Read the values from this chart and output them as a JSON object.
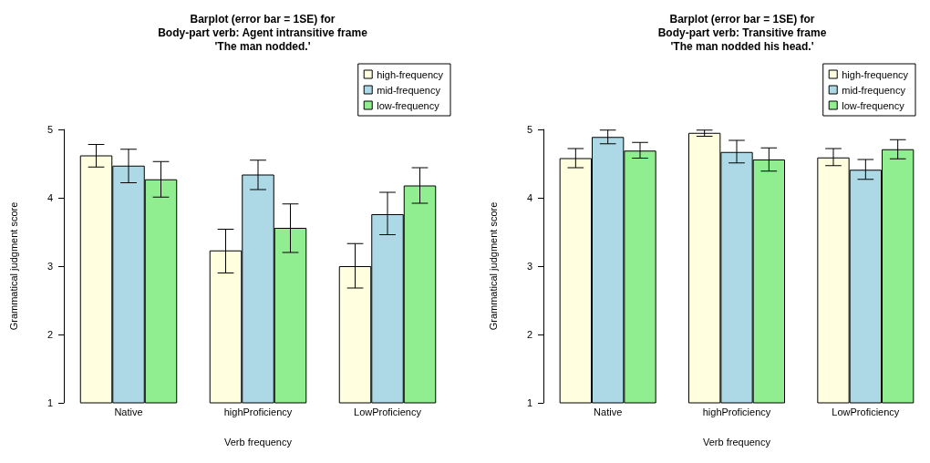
{
  "chart_data": [
    {
      "type": "bar",
      "title": "Barplot (error bar = 1SE) for\nBody-part verb: Agent intransitive frame\n'The man nodded.'",
      "xlabel": "Verb frequency",
      "ylabel": "Grammatical judgment score",
      "categories": [
        "Native",
        "highProficiency",
        "LowProficiency"
      ],
      "ylim": [
        1,
        5
      ],
      "yticks": [
        1,
        2,
        3,
        4,
        5
      ],
      "grid": false,
      "legend": "top right",
      "series": [
        {
          "name": "high-frequency",
          "color": "#ffffe0",
          "values": [
            4.62,
            3.23,
            3.0
          ],
          "errors": [
            [
              4.45,
              4.78
            ],
            [
              2.9,
              3.54
            ],
            [
              2.68,
              3.33
            ]
          ]
        },
        {
          "name": "mid-frequency",
          "color": "#add8e6",
          "values": [
            4.47,
            4.34,
            3.76
          ],
          "errors": [
            [
              4.22,
              4.71
            ],
            [
              4.12,
              4.55
            ],
            [
              3.46,
              4.08
            ]
          ]
        },
        {
          "name": "low-frequency",
          "color": "#90ee90",
          "values": [
            4.27,
            3.56,
            4.18
          ],
          "errors": [
            [
              4.01,
              4.53
            ],
            [
              3.2,
              3.91
            ],
            [
              3.92,
              4.44
            ]
          ]
        }
      ]
    },
    {
      "type": "bar",
      "title": "Barplot (error bar = 1SE) for\nBody-part verb: Transitive frame\n'The man nodded his head.'",
      "xlabel": "Verb frequency",
      "ylabel": "Grammatical judgment score",
      "categories": [
        "Native",
        "highProficiency",
        "LowProficiency"
      ],
      "ylim": [
        1,
        5
      ],
      "yticks": [
        1,
        2,
        3,
        4,
        5
      ],
      "grid": false,
      "legend": "top right",
      "series": [
        {
          "name": "high-frequency",
          "color": "#ffffe0",
          "values": [
            4.58,
            4.95,
            4.59
          ],
          "errors": [
            [
              4.44,
              4.72
            ],
            [
              4.9,
              4.99
            ],
            [
              4.47,
              4.72
            ]
          ]
        },
        {
          "name": "mid-frequency",
          "color": "#add8e6",
          "values": [
            4.89,
            4.67,
            4.41
          ],
          "errors": [
            [
              4.79,
              4.99
            ],
            [
              4.51,
              4.84
            ],
            [
              4.27,
              4.56
            ]
          ]
        },
        {
          "name": "low-frequency",
          "color": "#90ee90",
          "values": [
            4.69,
            4.56,
            4.71
          ],
          "errors": [
            [
              4.58,
              4.81
            ],
            [
              4.39,
              4.73
            ],
            [
              4.57,
              4.85
            ]
          ]
        }
      ]
    }
  ]
}
